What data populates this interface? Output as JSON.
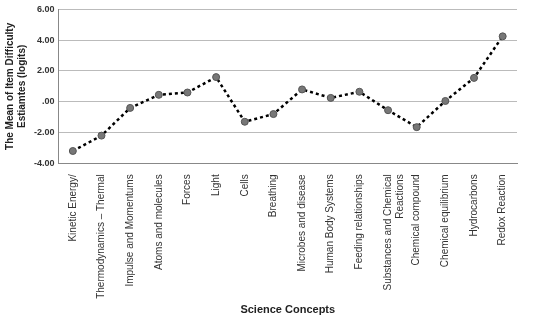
{
  "chart_data": {
    "type": "line",
    "y_label": "The Mean of Item Difficulty Estiamtes (logits)",
    "x_label": "Science Concepts",
    "categories": [
      "Kinetic Energy/",
      "Thermodynamics – Thermal",
      "Impulse and Momentums",
      "Atoms and molecules",
      "Forces",
      "Light",
      "Cells",
      "Breathing",
      "Microbes and disease",
      "Human Body Systems",
      "Feeding relationships",
      "Substances and Chemical Reactions",
      "Chemical compound",
      "Chemical equilibrium",
      "Hydrocarbons",
      "Redox Reaction"
    ],
    "values": [
      -3.2,
      -2.2,
      -0.4,
      0.45,
      0.6,
      1.6,
      -1.3,
      -0.8,
      0.8,
      0.25,
      0.65,
      -0.55,
      -1.65,
      0.05,
      1.55,
      4.25
    ],
    "color": "#000000",
    "marker": "circle",
    "line_style": "dotted",
    "ylim": [
      -4,
      6
    ],
    "yticks": [
      {
        "value": -4,
        "label": "-4.00"
      },
      {
        "value": -2,
        "label": "-2.00"
      },
      {
        "value": 0,
        "label": ".00"
      },
      {
        "value": 2,
        "label": "2.00"
      },
      {
        "value": 4,
        "label": "4.00"
      },
      {
        "value": 6,
        "label": "6.00"
      }
    ],
    "grid": true
  }
}
